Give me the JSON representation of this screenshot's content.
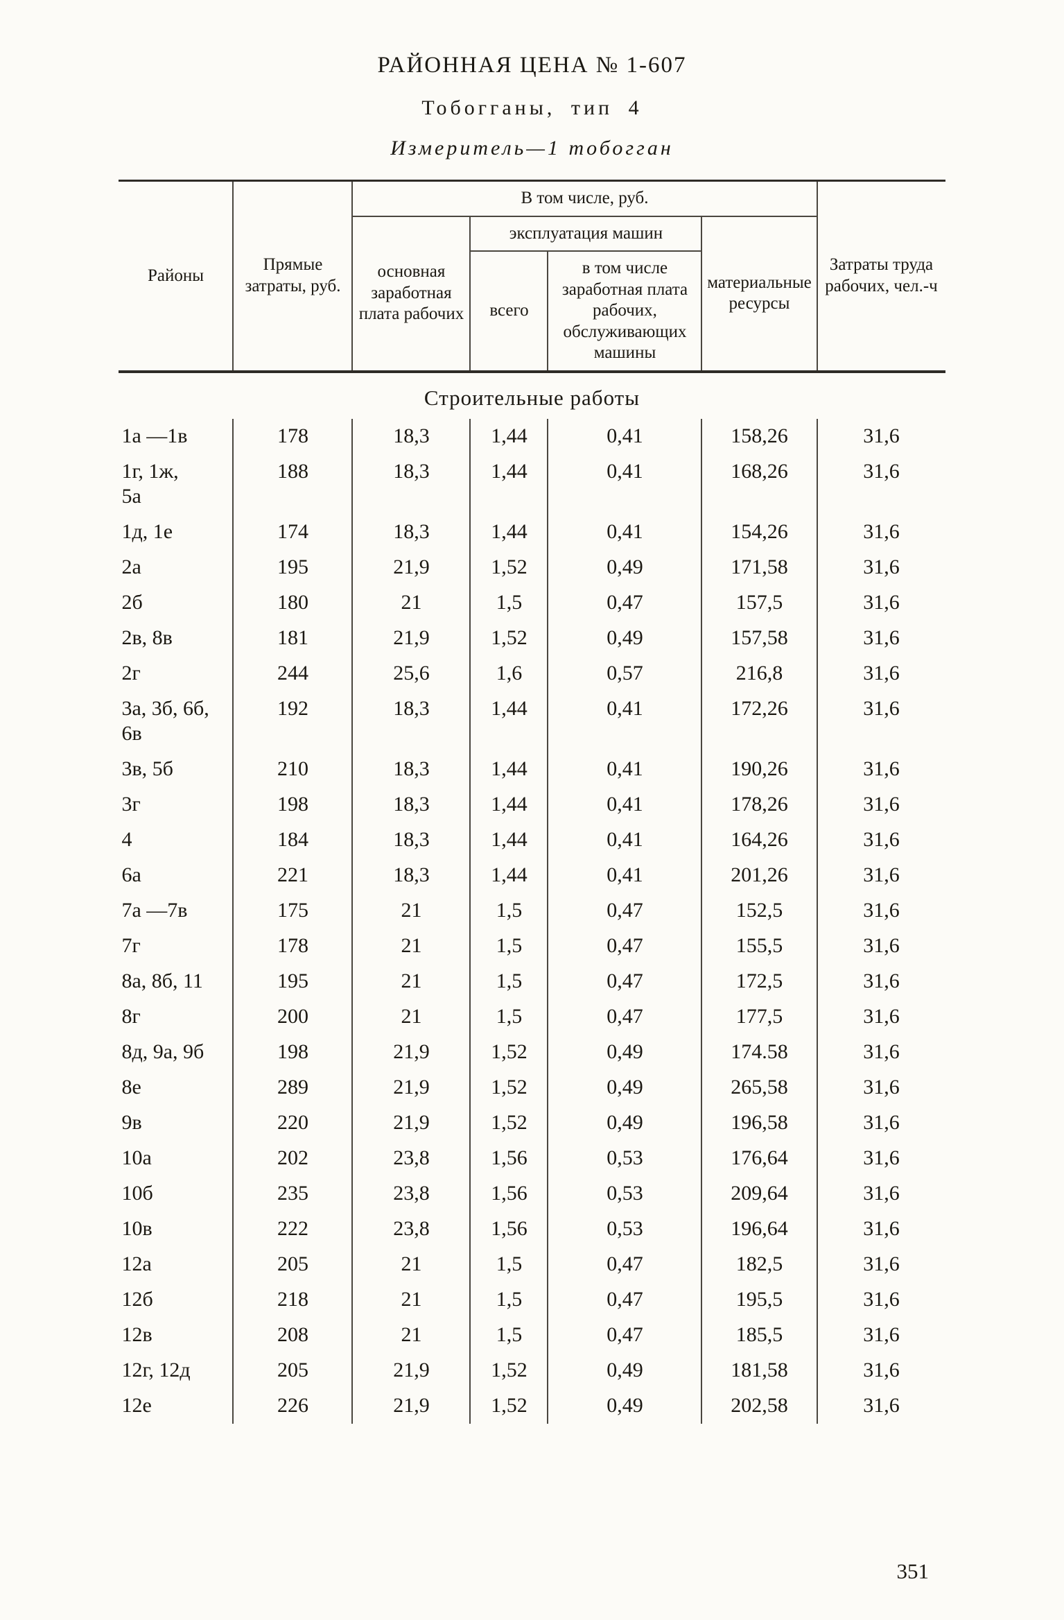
{
  "document": {
    "title": "РАЙОННАЯ ЦЕНА № 1-607",
    "subtitle": "Тобогганы, тип 4",
    "measure_line": "Измеритель—1 тобогган",
    "page_number": "351"
  },
  "table": {
    "section_title": "Строительные работы",
    "headers": {
      "districts": "Районы",
      "direct_costs": "Прямые затраты, руб.",
      "including_group": "В том числе, руб.",
      "basic_wage": "основная заработная плата рабочих",
      "machines_group": "эксплуатация машин",
      "machines_total": "всего",
      "machines_incl_wage": "в том числе заработная плата рабочих, обслуживающих машины",
      "materials": "материальные ресурсы",
      "labor_costs": "Затраты труда рабочих, чел.-ч"
    },
    "rows": [
      {
        "district": "1а —1в",
        "direct_costs": "178",
        "basic_wage": "18,3",
        "machines_total": "1,44",
        "machines_incl_wage": "0,41",
        "materials": "158,26",
        "labor": "31,6"
      },
      {
        "district": "1г, 1ж,\n5а",
        "direct_costs": "188",
        "basic_wage": "18,3",
        "machines_total": "1,44",
        "machines_incl_wage": "0,41",
        "materials": "168,26",
        "labor": "31,6"
      },
      {
        "district": "1д, 1е",
        "direct_costs": "174",
        "basic_wage": "18,3",
        "machines_total": "1,44",
        "machines_incl_wage": "0,41",
        "materials": "154,26",
        "labor": "31,6"
      },
      {
        "district": "2а",
        "direct_costs": "195",
        "basic_wage": "21,9",
        "machines_total": "1,52",
        "machines_incl_wage": "0,49",
        "materials": "171,58",
        "labor": "31,6"
      },
      {
        "district": "2б",
        "direct_costs": "180",
        "basic_wage": "21",
        "machines_total": "1,5",
        "machines_incl_wage": "0,47",
        "materials": "157,5",
        "labor": "31,6"
      },
      {
        "district": "2в, 8в",
        "direct_costs": "181",
        "basic_wage": "21,9",
        "machines_total": "1,52",
        "machines_incl_wage": "0,49",
        "materials": "157,58",
        "labor": "31,6"
      },
      {
        "district": "2г",
        "direct_costs": "244",
        "basic_wage": "25,6",
        "machines_total": "1,6",
        "machines_incl_wage": "0,57",
        "materials": "216,8",
        "labor": "31,6"
      },
      {
        "district": "3а, 3б, 6б,\n6в",
        "direct_costs": "192",
        "basic_wage": "18,3",
        "machines_total": "1,44",
        "machines_incl_wage": "0,41",
        "materials": "172,26",
        "labor": "31,6"
      },
      {
        "district": "3в, 5б",
        "direct_costs": "210",
        "basic_wage": "18,3",
        "machines_total": "1,44",
        "machines_incl_wage": "0,41",
        "materials": "190,26",
        "labor": "31,6"
      },
      {
        "district": "3г",
        "direct_costs": "198",
        "basic_wage": "18,3",
        "machines_total": "1,44",
        "machines_incl_wage": "0,41",
        "materials": "178,26",
        "labor": "31,6"
      },
      {
        "district": "4",
        "direct_costs": "184",
        "basic_wage": "18,3",
        "machines_total": "1,44",
        "machines_incl_wage": "0,41",
        "materials": "164,26",
        "labor": "31,6"
      },
      {
        "district": "6а",
        "direct_costs": "221",
        "basic_wage": "18,3",
        "machines_total": "1,44",
        "machines_incl_wage": "0,41",
        "materials": "201,26",
        "labor": "31,6"
      },
      {
        "district": "7а —7в",
        "direct_costs": "175",
        "basic_wage": "21",
        "machines_total": "1,5",
        "machines_incl_wage": "0,47",
        "materials": "152,5",
        "labor": "31,6"
      },
      {
        "district": "7г",
        "direct_costs": "178",
        "basic_wage": "21",
        "machines_total": "1,5",
        "machines_incl_wage": "0,47",
        "materials": "155,5",
        "labor": "31,6"
      },
      {
        "district": "8а, 8б, 11",
        "direct_costs": "195",
        "basic_wage": "21",
        "machines_total": "1,5",
        "machines_incl_wage": "0,47",
        "materials": "172,5",
        "labor": "31,6"
      },
      {
        "district": "8г",
        "direct_costs": "200",
        "basic_wage": "21",
        "machines_total": "1,5",
        "machines_incl_wage": "0,47",
        "materials": "177,5",
        "labor": "31,6"
      },
      {
        "district": "8д, 9а, 9б",
        "direct_costs": "198",
        "basic_wage": "21,9",
        "machines_total": "1,52",
        "machines_incl_wage": "0,49",
        "materials": "174.58",
        "labor": "31,6"
      },
      {
        "district": "8е",
        "direct_costs": "289",
        "basic_wage": "21,9",
        "machines_total": "1,52",
        "machines_incl_wage": "0,49",
        "materials": "265,58",
        "labor": "31,6"
      },
      {
        "district": "9в",
        "direct_costs": "220",
        "basic_wage": "21,9",
        "machines_total": "1,52",
        "machines_incl_wage": "0,49",
        "materials": "196,58",
        "labor": "31,6"
      },
      {
        "district": "10а",
        "direct_costs": "202",
        "basic_wage": "23,8",
        "machines_total": "1,56",
        "machines_incl_wage": "0,53",
        "materials": "176,64",
        "labor": "31,6"
      },
      {
        "district": "10б",
        "direct_costs": "235",
        "basic_wage": "23,8",
        "machines_total": "1,56",
        "machines_incl_wage": "0,53",
        "materials": "209,64",
        "labor": "31,6"
      },
      {
        "district": "10в",
        "direct_costs": "222",
        "basic_wage": "23,8",
        "machines_total": "1,56",
        "machines_incl_wage": "0,53",
        "materials": "196,64",
        "labor": "31,6"
      },
      {
        "district": "12а",
        "direct_costs": "205",
        "basic_wage": "21",
        "machines_total": "1,5",
        "machines_incl_wage": "0,47",
        "materials": "182,5",
        "labor": "31,6"
      },
      {
        "district": "12б",
        "direct_costs": "218",
        "basic_wage": "21",
        "machines_total": "1,5",
        "machines_incl_wage": "0,47",
        "materials": "195,5",
        "labor": "31,6"
      },
      {
        "district": "12в",
        "direct_costs": "208",
        "basic_wage": "21",
        "machines_total": "1,5",
        "machines_incl_wage": "0,47",
        "materials": "185,5",
        "labor": "31,6"
      },
      {
        "district": "12г, 12д",
        "direct_costs": "205",
        "basic_wage": "21,9",
        "machines_total": "1,52",
        "machines_incl_wage": "0,49",
        "materials": "181,58",
        "labor": "31,6"
      },
      {
        "district": "12е",
        "direct_costs": "226",
        "basic_wage": "21,9",
        "machines_total": "1,52",
        "machines_incl_wage": "0,49",
        "materials": "202,58",
        "labor": "31,6"
      }
    ]
  }
}
